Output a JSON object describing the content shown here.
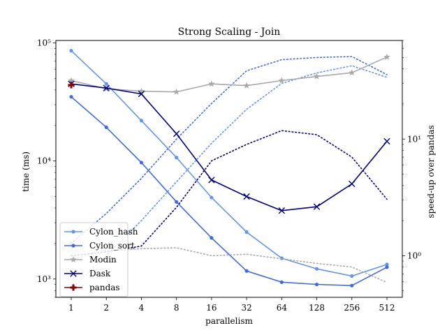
{
  "chart_data": {
    "type": "line",
    "title": "Strong Scaling - Join",
    "xlabel": "parallelism",
    "ylabel": "time (ms)",
    "y2label": "speed-up over pandas",
    "x_scale": "log2",
    "y_scale": "log",
    "y2_scale": "log",
    "categories": [
      "1",
      "2",
      "4",
      "8",
      "16",
      "32",
      "64",
      "128",
      "256",
      "512"
    ],
    "ylim": [
      700,
      105000
    ],
    "y2lim": [
      0.44,
      70
    ],
    "y_ticks": [
      {
        "value": 1000,
        "label": "10³"
      },
      {
        "value": 10000,
        "label": "10⁴"
      },
      {
        "value": 100000,
        "label": "10⁵"
      }
    ],
    "y2_ticks": [
      {
        "value": 1,
        "label": "10⁰"
      },
      {
        "value": 10,
        "label": "10¹"
      }
    ],
    "legend_position": "lower-left",
    "series": [
      {
        "name": "Cylon_hash",
        "color": "#6495ED",
        "marker": "dot",
        "time": [
          86000,
          45000,
          22000,
          10700,
          4900,
          2500,
          1500,
          1220,
          1060,
          1330
        ],
        "speedup": [
          0.52,
          1.0,
          2.0,
          4.3,
          9.2,
          18.0,
          30.0,
          36.9,
          42.5,
          33.8
        ]
      },
      {
        "name": "Cylon_sort",
        "color": "#4169E1",
        "marker": "dot",
        "time": [
          35000,
          19300,
          9700,
          4500,
          2230,
          1170,
          940,
          900,
          880,
          1260
        ],
        "speedup": [
          1.28,
          2.3,
          4.6,
          10.0,
          20.2,
          38.5,
          47.9,
          50.0,
          51.0,
          35.7
        ]
      },
      {
        "name": "Modin",
        "color": "#A9A9A9",
        "marker": "star",
        "time": [
          48000,
          41000,
          39000,
          38500,
          45000,
          43500,
          48000,
          52000,
          56000,
          76000
        ],
        "speedup": [
          0.94,
          1.1,
          1.15,
          1.17,
          1.0,
          1.03,
          0.94,
          0.86,
          0.8,
          0.59
        ]
      },
      {
        "name": "Dask",
        "color": "#000080",
        "marker": "x",
        "time": [
          45000,
          41500,
          37000,
          17000,
          6900,
          5000,
          3800,
          4100,
          6400,
          14700
        ],
        "speedup": [
          1.0,
          1.08,
          1.21,
          2.6,
          6.5,
          9.0,
          11.8,
          10.9,
          7.0,
          3.05
        ]
      },
      {
        "name": "pandas",
        "color": "#8B0000",
        "marker": "plus",
        "time": [
          44000,
          null,
          null,
          null,
          null,
          null,
          null,
          null,
          null,
          null
        ],
        "speedup": []
      }
    ]
  }
}
